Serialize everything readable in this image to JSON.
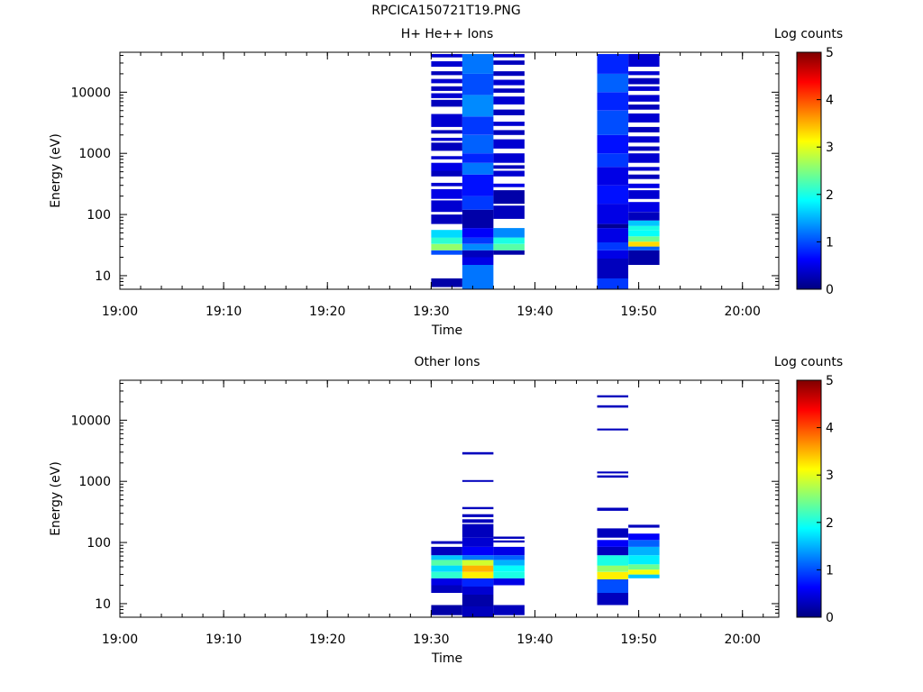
{
  "figure_title": "RPCICA150721T19.PNG",
  "chart_data": [
    {
      "type": "heatmap",
      "title": "H+ He++ Ions",
      "xlabel": "Time",
      "ylabel": "Energy (eV)",
      "x_ticks": [
        "19:00",
        "19:10",
        "19:20",
        "19:30",
        "19:40",
        "19:50",
        "20:00"
      ],
      "y_ticks": [
        "10",
        "100",
        "1000",
        "10000"
      ],
      "y_scale": "log",
      "ylim": [
        6,
        45000
      ],
      "colorbar": {
        "label": "Log counts",
        "ticks": [
          "0",
          "1",
          "2",
          "3",
          "4",
          "5"
        ],
        "range": [
          0,
          5
        ],
        "colormap": "jet"
      },
      "columns": [
        {
          "t0": "19:30",
          "t1": "19:33",
          "bins": [
            [
              6.5,
              9,
              0.2
            ],
            [
              22,
              26,
              1.0
            ],
            [
              26,
              33,
              2.6
            ],
            [
              33,
              42,
              2.1
            ],
            [
              42,
              56,
              1.7
            ],
            [
              70,
              100,
              0.3
            ],
            [
              110,
              170,
              0.4
            ],
            [
              180,
              260,
              0.5
            ],
            [
              290,
              330,
              0.4
            ],
            [
              420,
              520,
              0.3
            ],
            [
              520,
              700,
              0.5
            ],
            [
              800,
              900,
              0.4
            ],
            [
              1100,
              1500,
              0.3
            ],
            [
              1600,
              1800,
              0.4
            ],
            [
              2100,
              2400,
              0.3
            ],
            [
              2700,
              4400,
              0.4
            ],
            [
              5800,
              7500,
              0.3
            ],
            [
              8000,
              9600,
              0.4
            ],
            [
              10500,
              12500,
              0.3
            ],
            [
              14000,
              16500,
              0.4
            ],
            [
              19000,
              22000,
              0.3
            ],
            [
              26000,
              32000,
              0.4
            ],
            [
              37000,
              42000,
              0.4
            ]
          ]
        },
        {
          "t0": "19:33",
          "t1": "19:36",
          "bins": [
            [
              6,
              15,
              1.2
            ],
            [
              15,
              20,
              0.5
            ],
            [
              20,
              26,
              0.3
            ],
            [
              26,
              33,
              1.3
            ],
            [
              33,
              42,
              0.9
            ],
            [
              42,
              60,
              0.6
            ],
            [
              60,
              120,
              0.2
            ],
            [
              120,
              200,
              0.9
            ],
            [
              200,
              450,
              0.7
            ],
            [
              450,
              700,
              1.2
            ],
            [
              700,
              1000,
              0.8
            ],
            [
              1000,
              2000,
              1.1
            ],
            [
              2000,
              4000,
              0.9
            ],
            [
              4000,
              9000,
              1.3
            ],
            [
              9000,
              20000,
              1.0
            ],
            [
              20000,
              42000,
              1.2
            ]
          ]
        },
        {
          "t0": "19:36",
          "t1": "19:39",
          "bins": [
            [
              22,
              26,
              0.2
            ],
            [
              26,
              33,
              2.3
            ],
            [
              33,
              42,
              2.0
            ],
            [
              42,
              60,
              1.3
            ],
            [
              85,
              140,
              0.3
            ],
            [
              150,
              250,
              0.2
            ],
            [
              280,
              320,
              0.5
            ],
            [
              420,
              520,
              0.4
            ],
            [
              560,
              640,
              0.3
            ],
            [
              700,
              1000,
              0.4
            ],
            [
              1200,
              1700,
              0.4
            ],
            [
              2000,
              2400,
              0.3
            ],
            [
              2800,
              3300,
              0.4
            ],
            [
              4200,
              5200,
              0.3
            ],
            [
              6300,
              8500,
              0.4
            ],
            [
              9800,
              11500,
              0.3
            ],
            [
              13000,
              16000,
              0.4
            ],
            [
              18500,
              22000,
              0.3
            ],
            [
              28000,
              33000,
              0.3
            ],
            [
              37000,
              42000,
              0.4
            ]
          ]
        },
        {
          "t0": "19:46",
          "t1": "19:49",
          "bins": [
            [
              6,
              9,
              0.9
            ],
            [
              9,
              19,
              0.3
            ],
            [
              19,
              26,
              0.5
            ],
            [
              26,
              35,
              0.9
            ],
            [
              35,
              60,
              0.5
            ],
            [
              60,
              70,
              0.1
            ],
            [
              70,
              150,
              0.5
            ],
            [
              150,
              300,
              0.7
            ],
            [
              300,
              600,
              0.5
            ],
            [
              600,
              1000,
              0.9
            ],
            [
              1000,
              2000,
              0.7
            ],
            [
              2000,
              5000,
              1.0
            ],
            [
              5000,
              10000,
              0.8
            ],
            [
              10000,
              20000,
              1.1
            ],
            [
              20000,
              42000,
              0.8
            ]
          ]
        },
        {
          "t0": "19:49",
          "t1": "19:52",
          "bins": [
            [
              15,
              26,
              0.2
            ],
            [
              26,
              30,
              1.1
            ],
            [
              30,
              36,
              3.3
            ],
            [
              36,
              44,
              2.4
            ],
            [
              44,
              55,
              1.9
            ],
            [
              55,
              65,
              2.0
            ],
            [
              65,
              80,
              1.6
            ],
            [
              80,
              110,
              0.3
            ],
            [
              110,
              160,
              0.5
            ],
            [
              180,
              250,
              0.4
            ],
            [
              270,
              320,
              0.5
            ],
            [
              380,
              450,
              0.3
            ],
            [
              520,
              600,
              0.4
            ],
            [
              700,
              1000,
              0.4
            ],
            [
              1100,
              1300,
              0.3
            ],
            [
              1500,
              1900,
              0.4
            ],
            [
              2200,
              2700,
              0.3
            ],
            [
              3200,
              4500,
              0.4
            ],
            [
              5200,
              6300,
              0.3
            ],
            [
              7000,
              9000,
              0.4
            ],
            [
              10500,
              12500,
              0.4
            ],
            [
              13500,
              17000,
              0.3
            ],
            [
              19000,
              22000,
              0.4
            ],
            [
              26000,
              42000,
              0.4
            ]
          ]
        }
      ]
    },
    {
      "type": "heatmap",
      "title": "Other Ions",
      "xlabel": "Time",
      "ylabel": "Energy (eV)",
      "x_ticks": [
        "19:00",
        "19:10",
        "19:20",
        "19:30",
        "19:40",
        "19:50",
        "20:00"
      ],
      "y_ticks": [
        "10",
        "100",
        "1000",
        "10000"
      ],
      "y_scale": "log",
      "ylim": [
        6,
        45000
      ],
      "colorbar": {
        "label": "Log counts",
        "ticks": [
          "0",
          "1",
          "2",
          "3",
          "4",
          "5"
        ],
        "range": [
          0,
          5
        ],
        "colormap": "jet"
      },
      "columns": [
        {
          "t0": "19:30",
          "t1": "19:33",
          "bins": [
            [
              6.5,
              9.5,
              0.2
            ],
            [
              15,
              20,
              0.3
            ],
            [
              20,
              26,
              0.5
            ],
            [
              26,
              33,
              2.1
            ],
            [
              33,
              42,
              1.7
            ],
            [
              42,
              52,
              2.3
            ],
            [
              52,
              62,
              1.6
            ],
            [
              62,
              85,
              0.3
            ],
            [
              95,
              105,
              0.3
            ]
          ]
        },
        {
          "t0": "19:33",
          "t1": "19:36",
          "bins": [
            [
              6,
              9,
              0.3
            ],
            [
              9,
              14,
              0.2
            ],
            [
              14,
              19,
              0.4
            ],
            [
              19,
              26,
              0.8
            ],
            [
              26,
              33,
              3.2
            ],
            [
              33,
              42,
              3.5
            ],
            [
              42,
              52,
              2.9
            ],
            [
              52,
              62,
              1.2
            ],
            [
              62,
              85,
              0.6
            ],
            [
              85,
              120,
              0.4
            ],
            [
              120,
              200,
              0.3
            ],
            [
              210,
              240,
              0.3
            ],
            [
              260,
              290,
              0.3
            ],
            [
              350,
              380,
              0.3
            ],
            [
              980,
              1050,
              0.3
            ],
            [
              2750,
              3000,
              0.3
            ]
          ]
        },
        {
          "t0": "19:36",
          "t1": "19:39",
          "bins": [
            [
              6.5,
              9.5,
              0.3
            ],
            [
              20,
              26,
              0.5
            ],
            [
              26,
              33,
              2.0
            ],
            [
              33,
              42,
              1.9
            ],
            [
              42,
              52,
              1.5
            ],
            [
              52,
              62,
              1.1
            ],
            [
              62,
              85,
              0.5
            ],
            [
              100,
              108,
              0.3
            ],
            [
              115,
              125,
              0.3
            ]
          ]
        },
        {
          "t0": "19:46",
          "t1": "19:49",
          "bins": [
            [
              9.5,
              15,
              0.3
            ],
            [
              15,
              25,
              1.0
            ],
            [
              25,
              33,
              3.2
            ],
            [
              33,
              42,
              2.6
            ],
            [
              42,
              62,
              2.0
            ],
            [
              62,
              85,
              0.3
            ],
            [
              85,
              110,
              0.6
            ],
            [
              120,
              170,
              0.3
            ],
            [
              330,
              370,
              0.3
            ],
            [
              1150,
              1250,
              0.3
            ],
            [
              1350,
              1450,
              0.3
            ],
            [
              6800,
              7300,
              0.3
            ],
            [
              16000,
              17500,
              0.3
            ],
            [
              23500,
              25500,
              0.3
            ]
          ]
        },
        {
          "t0": "19:49",
          "t1": "19:52",
          "bins": [
            [
              26,
              30,
              1.6
            ],
            [
              30,
              36,
              3.1
            ],
            [
              36,
              44,
              2.4
            ],
            [
              44,
              62,
              1.8
            ],
            [
              62,
              85,
              1.5
            ],
            [
              85,
              110,
              1.1
            ],
            [
              110,
              140,
              0.6
            ],
            [
              175,
              195,
              0.3
            ]
          ]
        }
      ]
    }
  ]
}
